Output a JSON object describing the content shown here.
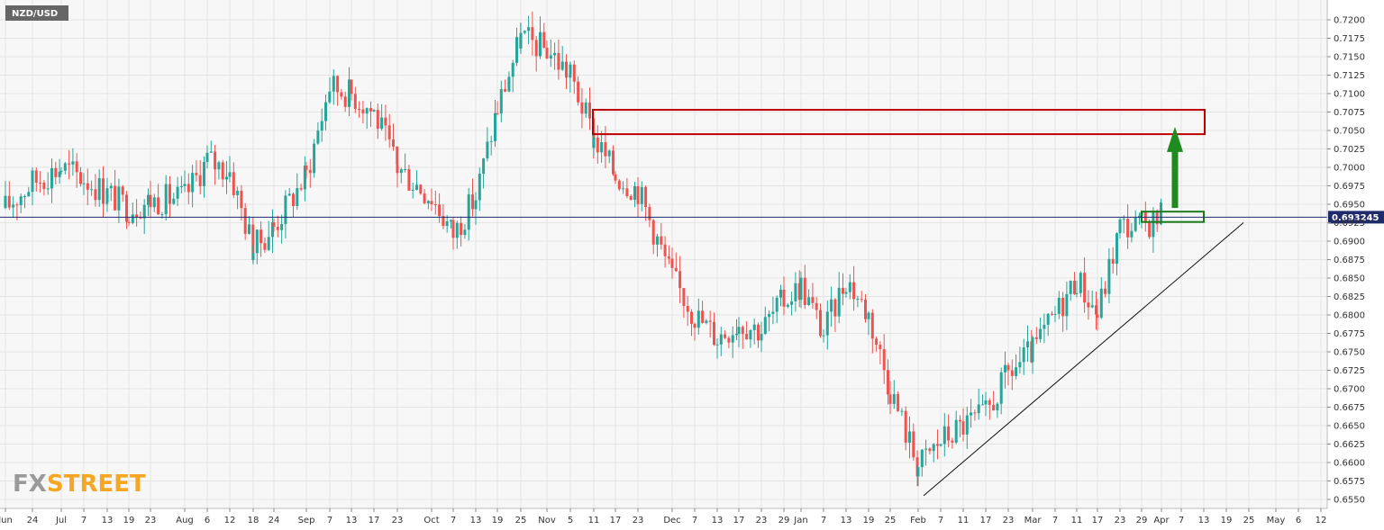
{
  "symbol": "NZD/USD",
  "watermark": {
    "prefix": "FX",
    "suffix": "STREET"
  },
  "colors": {
    "up": "#26a69a",
    "down": "#ef5350",
    "resistance_box": "#c00000",
    "support_box": "#1a7a1a",
    "arrow": "#1f8a1f",
    "price_line": "#1f2a6b",
    "grid": "#e4e4e4",
    "background": "#f7f7f7",
    "symbol_badge": "#666666",
    "watermark_prefix": "#9a9a9a",
    "watermark_suffix": "#f5a623"
  },
  "chart_data": {
    "type": "candlestick",
    "timeframe": "daily",
    "ylim": [
      0.6535,
      0.7215
    ],
    "y_ticks": [
      "0.7200",
      "0.7175",
      "0.7150",
      "0.7125",
      "0.7100",
      "0.7075",
      "0.7050",
      "0.7025",
      "0.7000",
      "0.6975",
      "0.6950",
      "0.6900",
      "0.6875",
      "0.6850",
      "0.6825",
      "0.6800",
      "0.6775",
      "0.6750",
      "0.6725",
      "0.6700",
      "0.6675",
      "0.6650",
      "0.6625",
      "0.6600",
      "0.6575",
      "0.6550"
    ],
    "hidden_tick_label": "0.6925",
    "x_ticks": [
      "Jun",
      "24",
      "Jul",
      "7",
      "13",
      "19",
      "23",
      "Aug",
      "6",
      "12",
      "18",
      "24",
      "Sep",
      "7",
      "13",
      "17",
      "23",
      "Oct",
      "7",
      "13",
      "19",
      "25",
      "Nov",
      "5",
      "11",
      "17",
      "23",
      "Dec",
      "7",
      "13",
      "17",
      "23",
      "29",
      "Jan",
      "7",
      "13",
      "19",
      "25",
      "Feb",
      "7",
      "11",
      "17",
      "23",
      "Mar",
      "7",
      "11",
      "17",
      "23",
      "29",
      "Apr",
      "7",
      "13",
      "19",
      "25",
      "May",
      "6",
      "12"
    ],
    "current_price": "0.693245",
    "candle_waypoints": [
      [
        "Jun",
        0.6945
      ],
      [
        "24",
        0.698
      ],
      [
        "Jul",
        0.7
      ],
      [
        "7",
        0.6985
      ],
      [
        "13",
        0.6965
      ],
      [
        "19",
        0.6945
      ],
      [
        "23",
        0.6955
      ],
      [
        "Aug",
        0.696
      ],
      [
        "6",
        0.701
      ],
      [
        "12",
        0.6995
      ],
      [
        "18",
        0.689
      ],
      [
        "24",
        0.692
      ],
      [
        "Sep",
        0.699
      ],
      [
        "7",
        0.711
      ],
      [
        "13",
        0.71
      ],
      [
        "17",
        0.7075
      ],
      [
        "23",
        0.7
      ],
      [
        "Oct",
        0.696
      ],
      [
        "7",
        0.691
      ],
      [
        "13",
        0.696
      ],
      [
        "19",
        0.708
      ],
      [
        "25",
        0.7175
      ],
      [
        "Nov",
        0.716
      ],
      [
        "5",
        0.7125
      ],
      [
        "11",
        0.704
      ],
      [
        "17",
        0.699
      ],
      [
        "23",
        0.697
      ],
      [
        "Dec",
        0.685
      ],
      [
        "7",
        0.68
      ],
      [
        "13",
        0.677
      ],
      [
        "17",
        0.679
      ],
      [
        "23",
        0.678
      ],
      [
        "29",
        0.682
      ],
      [
        "Jan",
        0.684
      ],
      [
        "7",
        0.6775
      ],
      [
        "13",
        0.685
      ],
      [
        "19",
        0.68
      ],
      [
        "25",
        0.67
      ],
      [
        "Feb",
        0.6595
      ],
      [
        "7",
        0.663
      ],
      [
        "11",
        0.665
      ],
      [
        "17",
        0.6665
      ],
      [
        "23",
        0.672
      ],
      [
        "Mar",
        0.675
      ],
      [
        "7",
        0.68
      ],
      [
        "11",
        0.685
      ],
      [
        "17",
        0.68
      ],
      [
        "23",
        0.692
      ],
      [
        "29",
        0.692
      ],
      [
        "Apr",
        0.6935
      ]
    ],
    "resistance_zone": {
      "low": 0.7045,
      "high": 0.7078,
      "from_tick": "11",
      "to_tick": "13"
    },
    "support_zone": {
      "low": 0.6926,
      "high": 0.694,
      "from_tick": "29",
      "to_tick": "Apr"
    },
    "target_arrow": {
      "from": 0.6945,
      "to": 0.7055
    },
    "trendline": {
      "start": 0.6555,
      "end": 0.6925,
      "from_tick": "Feb",
      "to_tick": "25"
    }
  }
}
